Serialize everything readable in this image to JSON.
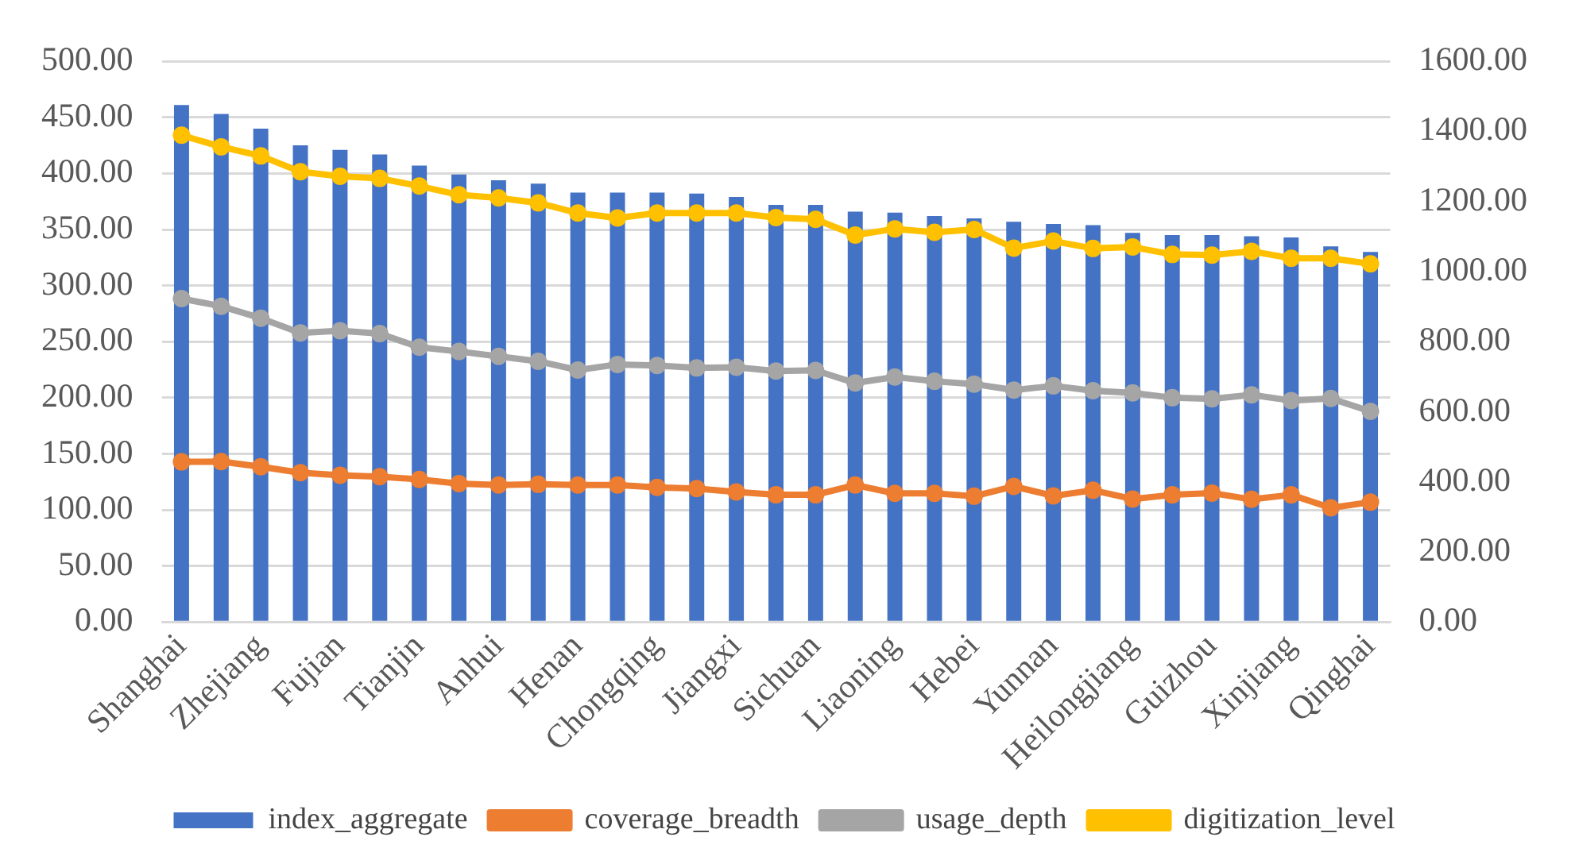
{
  "chart_data": {
    "type": "bar",
    "categories": [
      "Shanghai",
      null,
      "Zhejiang",
      null,
      "Fujian",
      null,
      "Tianjin",
      null,
      "Anhui",
      null,
      "Henan",
      null,
      "Chongqing",
      null,
      "Jiangxi",
      null,
      "Sichuan",
      null,
      "Liaoning",
      null,
      "Hebei",
      null,
      "Yunnan",
      null,
      "Heilongjiang",
      null,
      "Guizhou",
      null,
      "Xinjiang",
      null,
      "Qinghai"
    ],
    "series": [
      {
        "name": "index_aggregate",
        "color": "#4472c4",
        "values": [
          461,
          453,
          440,
          425,
          421,
          417,
          407,
          399,
          394,
          391,
          383,
          383,
          383,
          382,
          379,
          372,
          372,
          366,
          365,
          362,
          360,
          357,
          355,
          354,
          347,
          345,
          345,
          344,
          343,
          335,
          330
        ]
      },
      {
        "name": "coverage_breadth",
        "type": "line",
        "axis": "y2",
        "color": "#ed7d31",
        "values": [
          457,
          458,
          443,
          426,
          419,
          415,
          407,
          395,
          391,
          393,
          391,
          391,
          384,
          381,
          371,
          363,
          363,
          391,
          367,
          367,
          359,
          387,
          360,
          376,
          351,
          363,
          368,
          350,
          363,
          326,
          342
        ]
      },
      {
        "name": "usage_depth",
        "type": "line",
        "axis": "y2",
        "color": "#a5a5a5",
        "values": [
          923,
          901,
          867,
          825,
          831,
          823,
          784,
          772,
          758,
          744,
          719,
          735,
          732,
          725,
          727,
          716,
          718,
          682,
          699,
          687,
          679,
          662,
          674,
          660,
          654,
          640,
          637,
          648,
          632,
          638,
          601
        ]
      },
      {
        "name": "digitization_level",
        "type": "line",
        "axis": "y2",
        "color": "#ffc000",
        "values": [
          1389,
          1356,
          1330,
          1285,
          1272,
          1266,
          1244,
          1219,
          1210,
          1196,
          1167,
          1153,
          1167,
          1167,
          1167,
          1154,
          1149,
          1104,
          1122,
          1112,
          1120,
          1067,
          1087,
          1066,
          1070,
          1049,
          1047,
          1058,
          1038,
          1038,
          1022
        ]
      }
    ],
    "ylim": [
      0,
      500
    ],
    "yticks": [
      {
        "value": 0,
        "label": "0.00"
      },
      {
        "value": 50,
        "label": "50.00"
      },
      {
        "value": 100,
        "label": "100.00"
      },
      {
        "value": 150,
        "label": "150.00"
      },
      {
        "value": 200,
        "label": "200.00"
      },
      {
        "value": 250,
        "label": "250.00"
      },
      {
        "value": 300,
        "label": "300.00"
      },
      {
        "value": 350,
        "label": "350.00"
      },
      {
        "value": 400,
        "label": "400.00"
      },
      {
        "value": 450,
        "label": "450.00"
      },
      {
        "value": 500,
        "label": "500.00"
      }
    ],
    "y2lim": [
      0,
      1600
    ],
    "y2ticks": [
      {
        "value": 0,
        "label": "0.00"
      },
      {
        "value": 200,
        "label": "200.00"
      },
      {
        "value": 400,
        "label": "400.00"
      },
      {
        "value": 600,
        "label": "600.00"
      },
      {
        "value": 800,
        "label": "800.00"
      },
      {
        "value": 1000,
        "label": "1000.00"
      },
      {
        "value": 1200,
        "label": "1200.00"
      },
      {
        "value": 1400,
        "label": "1400.00"
      },
      {
        "value": 1600,
        "label": "1600.00"
      }
    ],
    "grid": "y",
    "legend": "bottom",
    "marker": "circle",
    "line_style": "solid"
  }
}
